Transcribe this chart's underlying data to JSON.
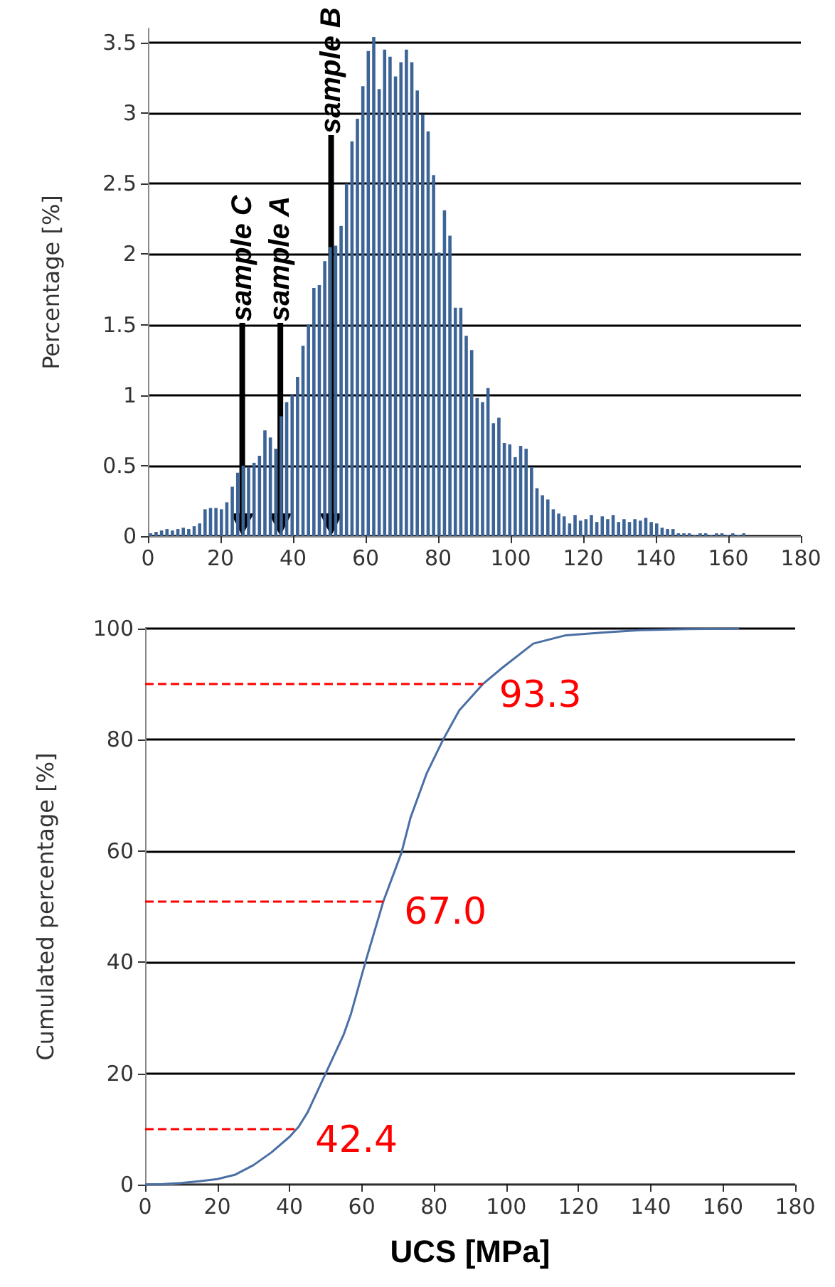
{
  "chart_data": [
    {
      "type": "histogram",
      "ylabel": "Percentage [%]",
      "color": "#3d6496",
      "bins": [
        0,
        1.5,
        3,
        4.5,
        6,
        7.5,
        9,
        10.5,
        12,
        13.5,
        15,
        16.5,
        18,
        19.5,
        21,
        22.5,
        24,
        25.5,
        27,
        28.5,
        30,
        31.5,
        33,
        34.5,
        36,
        37.5,
        39,
        40.5,
        42,
        43.5,
        45,
        46.5,
        48,
        49.5,
        51,
        52.5,
        54,
        55.5,
        57,
        58.5,
        60,
        61.5,
        63,
        64.5,
        66,
        67.5,
        69,
        70.5,
        72,
        73.5,
        75,
        76.5,
        78,
        79.5,
        81,
        82.5,
        84,
        85.5,
        87,
        88.5,
        90,
        91.5,
        93,
        94.5,
        96,
        97.5,
        99,
        100.5,
        102,
        103.5,
        105,
        106.5,
        108,
        109.5,
        111,
        112.5,
        114,
        115.5,
        117,
        118.5,
        120,
        121.5,
        123,
        124.5,
        126,
        127.5,
        129,
        130.5,
        132,
        133.5,
        135,
        136.5,
        138,
        139.5,
        141,
        142.5,
        144,
        145.5,
        147,
        148.5,
        150,
        151.5,
        153,
        154.5,
        156,
        157.5,
        159,
        160.5,
        162,
        163.5,
        165
      ],
      "values": [
        0.02,
        0.03,
        0.04,
        0.05,
        0.04,
        0.05,
        0.06,
        0.05,
        0.07,
        0.09,
        0.19,
        0.2,
        0.2,
        0.19,
        0.24,
        0.35,
        0.45,
        0.5,
        0.49,
        0.52,
        0.57,
        0.75,
        0.7,
        0.62,
        0.85,
        0.95,
        1.0,
        1.13,
        1.35,
        1.5,
        1.76,
        1.78,
        1.95,
        2.05,
        2.06,
        2.2,
        2.5,
        2.8,
        2.96,
        3.19,
        3.44,
        3.54,
        3.17,
        3.45,
        3.4,
        3.26,
        3.36,
        3.45,
        3.36,
        3.16,
        2.99,
        2.87,
        2.56,
        2.01,
        2.31,
        2.13,
        1.62,
        1.62,
        1.42,
        1.32,
        0.98,
        0.95,
        1.05,
        0.8,
        0.84,
        0.66,
        0.65,
        0.56,
        0.64,
        0.62,
        0.49,
        0.34,
        0.29,
        0.26,
        0.19,
        0.16,
        0.14,
        0.09,
        0.15,
        0.11,
        0.12,
        0.15,
        0.1,
        0.14,
        0.12,
        0.15,
        0.1,
        0.12,
        0.1,
        0.12,
        0.11,
        0.13,
        0.1,
        0.09,
        0.06,
        0.05,
        0.05,
        0.02,
        0.02,
        0.02,
        0.01,
        0.02,
        0.02,
        0.01,
        0.02,
        0.02,
        0.01,
        0.02,
        0.01,
        0.02
      ],
      "xlim": [
        0,
        180
      ],
      "xticks": [
        0,
        20,
        40,
        60,
        80,
        100,
        120,
        140,
        160,
        180
      ],
      "ylim": [
        0,
        3.6
      ],
      "yticks": [
        0,
        0.5,
        1,
        1.5,
        2,
        2.5,
        3,
        3.5
      ],
      "grid": "y",
      "ref_lines": [
        {
          "axis": "x",
          "value": 26,
          "label": "sample C",
          "color": "#000000"
        },
        {
          "axis": "x",
          "value": 36.5,
          "label": "sample A",
          "color": "#000000"
        },
        {
          "axis": "x",
          "value": 50.5,
          "label": "sample B",
          "color": "#000000"
        }
      ]
    },
    {
      "type": "line",
      "xlabel": "UCS [MPa]",
      "ylabel": "Cumulated percentage [%]",
      "color": "#4a6fa5",
      "marker": "none",
      "x": [
        0,
        5,
        10,
        15,
        20,
        25,
        30,
        35,
        40,
        42.5,
        45,
        50,
        55,
        57,
        61,
        66,
        71,
        73.5,
        78,
        82.5,
        87,
        93.5,
        99,
        107.5,
        116.5,
        127,
        137,
        150,
        164.5
      ],
      "values": [
        0,
        0.1,
        0.3,
        0.6,
        1,
        1.8,
        3.5,
        5.8,
        8.6,
        10.4,
        13,
        20,
        27,
        30.7,
        40,
        51,
        59.7,
        66,
        74,
        80,
        85.3,
        90,
        93,
        97.3,
        98.8,
        99.3,
        99.7,
        99.9,
        100
      ],
      "xlim": [
        0,
        180
      ],
      "xticks": [
        0,
        20,
        40,
        60,
        80,
        100,
        120,
        140,
        160,
        180
      ],
      "ylim": [
        0,
        100
      ],
      "yticks": [
        0,
        20,
        40,
        60,
        80,
        100
      ],
      "grid": "y",
      "ref_lines": [
        {
          "axis": "y",
          "value": 90,
          "color": "#ff0000",
          "line_style": "dashed"
        },
        {
          "axis": "y",
          "value": 51,
          "color": "#ff0000",
          "line_style": "dashed"
        },
        {
          "axis": "y",
          "value": 10,
          "color": "#ff0000",
          "line_style": "dashed"
        }
      ],
      "annotations": [
        {
          "text": "93.3",
          "x": 93.3,
          "y": 90
        },
        {
          "text": "67.0",
          "x": 67.0,
          "y": 51
        },
        {
          "text": "42.4",
          "x": 42.4,
          "y": 10
        }
      ]
    }
  ]
}
